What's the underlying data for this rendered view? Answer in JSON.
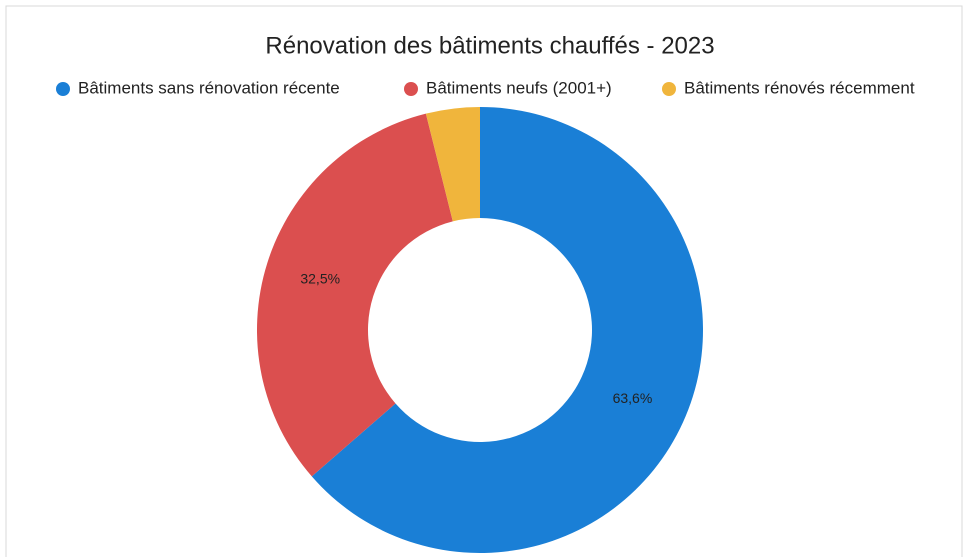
{
  "chart_data": {
    "type": "donut",
    "title": "Rénovation des bâtiments chauffés - 2023",
    "categories": [
      "Bâtiments sans rénovation récente",
      "Bâtiments neufs (2001+)",
      "Bâtiments rénovés récemment"
    ],
    "values": [
      63.6,
      32.5,
      3.9
    ],
    "value_labels": [
      "63,6%",
      "32,5%",
      null
    ],
    "colors": [
      "#1a7fd6",
      "#db4f4f",
      "#f0b53c"
    ],
    "legend": "top"
  }
}
